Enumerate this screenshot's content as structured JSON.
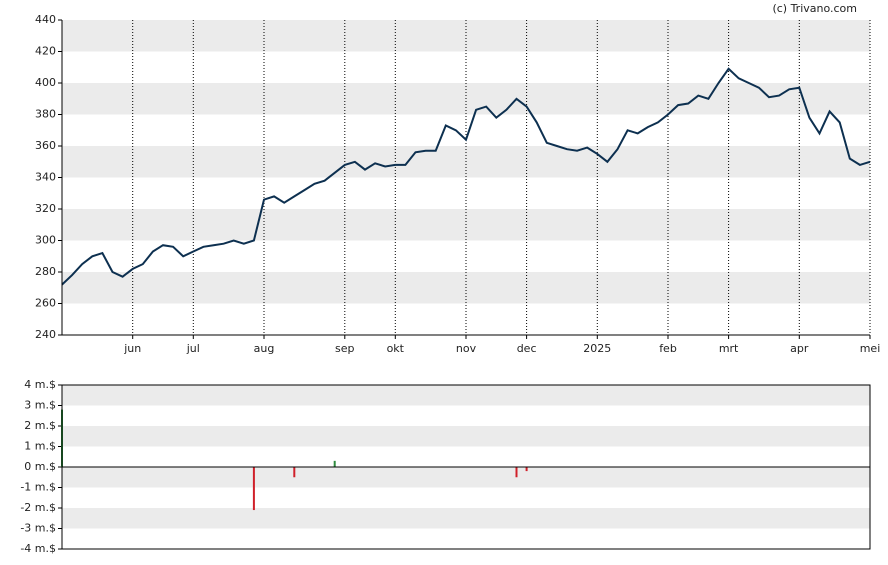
{
  "credit": "(c) Trivano.com",
  "chart_data": [
    {
      "type": "line",
      "categories": [
        null,
        null,
        null,
        null,
        null,
        null,
        null,
        "jun",
        null,
        null,
        null,
        null,
        null,
        "jul",
        null,
        null,
        null,
        null,
        null,
        null,
        "aug",
        null,
        null,
        null,
        null,
        null,
        null,
        null,
        "sep",
        null,
        null,
        null,
        null,
        "okt",
        null,
        null,
        null,
        null,
        null,
        null,
        "nov",
        null,
        null,
        null,
        null,
        null,
        "dec",
        null,
        null,
        null,
        null,
        null,
        null,
        "2025",
        null,
        null,
        null,
        null,
        null,
        null,
        "feb",
        null,
        null,
        null,
        null,
        null,
        "mrt",
        null,
        null,
        null,
        null,
        null,
        null,
        "apr",
        null,
        null,
        null,
        null,
        null,
        null,
        "mei"
      ],
      "values": [
        272,
        278,
        285,
        290,
        292,
        280,
        277,
        282,
        285,
        293,
        297,
        296,
        290,
        293,
        296,
        297,
        298,
        300,
        298,
        300,
        326,
        328,
        324,
        328,
        332,
        336,
        338,
        343,
        348,
        350,
        345,
        349,
        347,
        348,
        348,
        356,
        357,
        357,
        373,
        370,
        364,
        383,
        385,
        378,
        383,
        390,
        385,
        375,
        362,
        360,
        358,
        357,
        359,
        355,
        350,
        358,
        370,
        368,
        372,
        375,
        380,
        386,
        387,
        392,
        390,
        400,
        409,
        403,
        400,
        397,
        391,
        392,
        396,
        397,
        378,
        368,
        382,
        375,
        352,
        348,
        350
      ],
      "color": "#0d3050",
      "ylim": [
        240,
        440
      ],
      "yticks": [
        240,
        260,
        280,
        300,
        320,
        340,
        360,
        380,
        400,
        420,
        440
      ],
      "grid": "bands"
    },
    {
      "type": "bar",
      "values": [
        2.8,
        null,
        null,
        null,
        null,
        null,
        null,
        null,
        null,
        null,
        null,
        null,
        null,
        null,
        null,
        null,
        null,
        null,
        null,
        -2.1,
        null,
        null,
        null,
        -0.5,
        null,
        null,
        null,
        0.3,
        null,
        null,
        null,
        null,
        null,
        null,
        null,
        null,
        null,
        null,
        null,
        null,
        null,
        null,
        null,
        null,
        null,
        -0.5,
        -0.2,
        null,
        null,
        null,
        null,
        null,
        null,
        null,
        null,
        null,
        null,
        null,
        null,
        null,
        null,
        null,
        null,
        null,
        null,
        null,
        null,
        null,
        null,
        null,
        null,
        null,
        null,
        null,
        null,
        null,
        null,
        null,
        null,
        null,
        null
      ],
      "positive_color": "#2e8b3e",
      "negative_color": "#d0202a",
      "ylim": [
        -4,
        4
      ],
      "yticks": [
        {
          "value": -4,
          "label": "-4 m.$"
        },
        {
          "value": -3,
          "label": "-3 m.$"
        },
        {
          "value": -2,
          "label": "-2 m.$"
        },
        {
          "value": -1,
          "label": "-1 m.$"
        },
        {
          "value": 0,
          "label": "0 m.$"
        },
        {
          "value": 1,
          "label": "1 m.$"
        },
        {
          "value": 2,
          "label": "2 m.$"
        },
        {
          "value": 3,
          "label": "3 m.$"
        },
        {
          "value": 4,
          "label": "4 m.$"
        }
      ],
      "grid": "bands"
    }
  ]
}
